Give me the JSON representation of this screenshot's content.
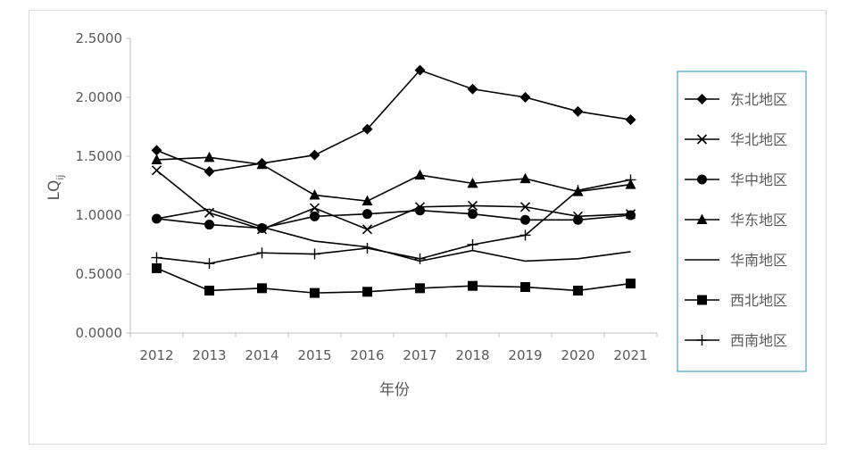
{
  "chart_data": {
    "type": "line",
    "title": "",
    "xlabel": "年份",
    "ylabel": "LQ",
    "ylabel_sub": "ij",
    "categories": [
      "2012",
      "2013",
      "2014",
      "2015",
      "2016",
      "2017",
      "2018",
      "2019",
      "2020",
      "2021"
    ],
    "ylim": [
      0,
      2.5
    ],
    "yticks": [
      "0.0000",
      "0.5000",
      "1.0000",
      "1.5000",
      "2.0000",
      "2.5000"
    ],
    "grid": false,
    "legend_position": "right",
    "series": [
      {
        "name": "东北地区",
        "marker": "diamond",
        "values": [
          1.55,
          1.37,
          1.44,
          1.51,
          1.73,
          2.23,
          2.07,
          2.0,
          1.88,
          1.81
        ]
      },
      {
        "name": "华北地区",
        "marker": "cross",
        "values": [
          1.38,
          1.02,
          0.88,
          1.06,
          0.88,
          1.07,
          1.08,
          1.07,
          0.99,
          1.01
        ]
      },
      {
        "name": "华中地区",
        "marker": "circle",
        "values": [
          0.97,
          0.92,
          0.89,
          0.99,
          1.01,
          1.04,
          1.01,
          0.96,
          0.96,
          1.0
        ]
      },
      {
        "name": "华东地区",
        "marker": "triangle",
        "values": [
          1.47,
          1.49,
          1.43,
          1.17,
          1.12,
          1.34,
          1.27,
          1.31,
          1.2,
          1.26
        ]
      },
      {
        "name": "华南地区",
        "marker": "none",
        "values": [
          0.97,
          1.05,
          0.9,
          0.78,
          0.73,
          0.61,
          0.7,
          0.61,
          0.63,
          0.69
        ]
      },
      {
        "name": "西北地区",
        "marker": "square",
        "values": [
          0.55,
          0.36,
          0.38,
          0.34,
          0.35,
          0.38,
          0.4,
          0.39,
          0.36,
          0.42
        ]
      },
      {
        "name": "西南地区",
        "marker": "plus",
        "values": [
          0.64,
          0.59,
          0.68,
          0.67,
          0.72,
          0.63,
          0.75,
          0.83,
          1.21,
          1.3
        ]
      }
    ]
  },
  "colors": {
    "line": "#000000",
    "axis": "#bfbfbf",
    "text": "#595959",
    "legend_border": "#41a4c8"
  }
}
